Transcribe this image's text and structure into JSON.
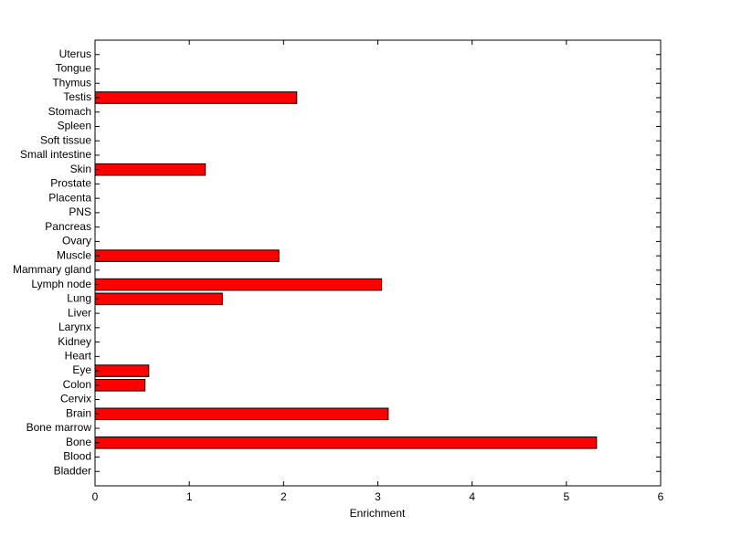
{
  "chart_data": {
    "type": "barh",
    "xlabel": "Enrichment",
    "categories": [
      "Bladder",
      "Blood",
      "Bone",
      "Bone marrow",
      "Brain",
      "Cervix",
      "Colon",
      "Eye",
      "Heart",
      "Kidney",
      "Larynx",
      "Liver",
      "Lung",
      "Lymph node",
      "Mammary gland",
      "Muscle",
      "Ovary",
      "Pancreas",
      "PNS",
      "Placenta",
      "Prostate",
      "Skin",
      "Small intestine",
      "Soft tissue",
      "Spleen",
      "Stomach",
      "Testis",
      "Thymus",
      "Tongue",
      "Uterus"
    ],
    "values": [
      0,
      0,
      5.32,
      0,
      3.11,
      0,
      0.53,
      0.57,
      0,
      0,
      0,
      0,
      1.35,
      3.04,
      0,
      1.95,
      0,
      0,
      0,
      0,
      0,
      1.17,
      0,
      0,
      0,
      0,
      2.14,
      0,
      0,
      0
    ],
    "color": "#ff0000",
    "xlim": [
      0,
      6
    ],
    "xticks": [
      0,
      1,
      2,
      3,
      4,
      5,
      6
    ]
  }
}
